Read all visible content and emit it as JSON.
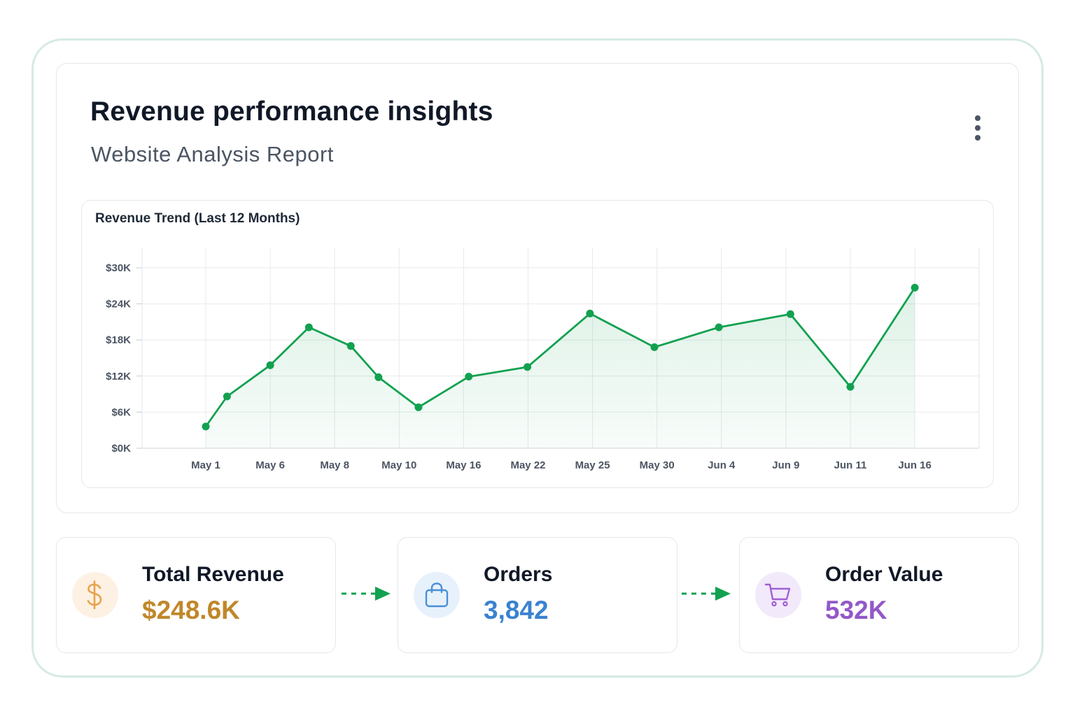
{
  "header": {
    "title": "Revenue performance insights",
    "subtitle": "Website Analysis Report",
    "menu_icon": "more-vertical-icon"
  },
  "chart_data": {
    "type": "area",
    "title": "Revenue Trend (Last 12 Months)",
    "xlabel": "",
    "ylabel": "",
    "x_tick_labels": [
      "May 1",
      "May 6",
      "May 8",
      "May 10",
      "May 16",
      "May 22",
      "May 25",
      "May 30",
      "Jun 4",
      "Jun 9",
      "Jun 11",
      "Jun 16"
    ],
    "y_tick_labels": [
      "$0K",
      "$6K",
      "$12K",
      "$18K",
      "$24K",
      "$30K"
    ],
    "ylim": [
      0,
      30000
    ],
    "grid": true,
    "line_color": "#12a150",
    "points": [
      {
        "x": 0,
        "y": 3600
      },
      {
        "x": 0.33,
        "y": 8600
      },
      {
        "x": 1,
        "y": 13800
      },
      {
        "x": 1.6,
        "y": 20100
      },
      {
        "x": 2.25,
        "y": 17000
      },
      {
        "x": 2.68,
        "y": 11800
      },
      {
        "x": 3.3,
        "y": 6800
      },
      {
        "x": 4.08,
        "y": 11900
      },
      {
        "x": 4.99,
        "y": 13500
      },
      {
        "x": 5.96,
        "y": 22400
      },
      {
        "x": 6.96,
        "y": 16800
      },
      {
        "x": 7.96,
        "y": 20100
      },
      {
        "x": 9.07,
        "y": 22300
      },
      {
        "x": 10.0,
        "y": 10200
      },
      {
        "x": 11.0,
        "y": 26700
      }
    ]
  },
  "stats": [
    {
      "label": "Total Revenue",
      "value": "$248.6K",
      "icon": "dollar-icon",
      "color": "#c0872a",
      "icon_bg": "#fdf1e4",
      "icon_color": "#e8a24a"
    },
    {
      "label": "Orders",
      "value": "3,842",
      "icon": "shopping-bag-icon",
      "color": "#3a82d0",
      "icon_bg": "#e7f1fb",
      "icon_color": "#4a8fd6"
    },
    {
      "label": "Order Value",
      "value": "532K",
      "icon": "shopping-cart-icon",
      "color": "#9358c8",
      "icon_bg": "#f2e9fb",
      "icon_color": "#a060d3"
    }
  ],
  "connector_color": "#12a150"
}
